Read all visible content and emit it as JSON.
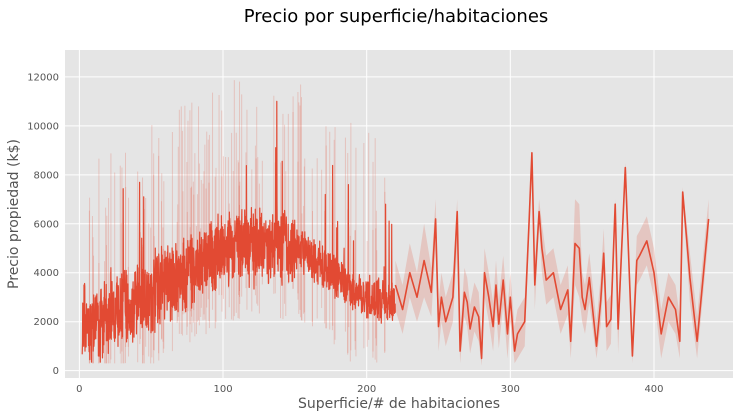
{
  "chart_data": {
    "type": "line",
    "title": "Precio por superficie/habitaciones",
    "xlabel": "Superficie/# de habitaciones",
    "ylabel": "Precio propiedad (k$)",
    "xlim": [
      -10,
      455
    ],
    "ylim": [
      -300,
      13100
    ],
    "x_ticks": [
      0,
      100,
      200,
      300,
      400
    ],
    "y_ticks": [
      0,
      2000,
      4000,
      6000,
      8000,
      10000,
      12000
    ],
    "grid": true,
    "legend": "none",
    "colors": {
      "line": "#E24A33",
      "band": "#E24A33",
      "plot_background": "#E5E5E5",
      "grid": "#FFFFFF"
    },
    "series": [
      {
        "x": [
          220,
          225,
          230,
          235,
          240,
          245,
          248,
          250,
          252,
          255,
          258,
          260,
          263,
          265,
          268,
          270,
          272,
          275,
          278,
          280,
          282,
          285,
          288,
          290,
          292,
          295,
          298,
          300,
          303,
          305,
          310,
          313,
          315,
          317,
          320,
          322,
          325,
          330,
          335,
          340,
          342,
          345,
          348,
          350,
          352,
          355,
          360,
          363,
          365,
          367,
          370,
          373,
          375,
          380,
          385,
          388,
          390,
          395,
          400,
          405,
          410,
          415,
          418,
          420,
          425,
          430,
          438
        ],
        "y": [
          3500,
          2500,
          4000,
          3000,
          4500,
          3200,
          6200,
          1800,
          3000,
          2000,
          2600,
          3000,
          6500,
          800,
          3200,
          2800,
          1700,
          2600,
          2200,
          500,
          4000,
          3000,
          1800,
          3500,
          1900,
          3700,
          1500,
          3000,
          800,
          1500,
          2000,
          6000,
          8900,
          3500,
          6500,
          5000,
          3700,
          4000,
          2500,
          3300,
          1200,
          5200,
          5000,
          3000,
          2500,
          3800,
          1000,
          2900,
          4800,
          1800,
          2100,
          6800,
          1700,
          8300,
          600,
          4500,
          4700,
          5300,
          4000,
          1500,
          3000,
          2500,
          1200,
          7300,
          3800,
          1200,
          6200
        ],
        "band_upper": [
          4500,
          3500,
          5200,
          4000,
          6000,
          4200,
          7000,
          2800,
          4000,
          3000,
          3600,
          4000,
          7000,
          1500,
          4200,
          3800,
          2700,
          3600,
          3200,
          1500,
          5000,
          4000,
          2800,
          4500,
          2900,
          4700,
          2500,
          4000,
          1800,
          2500,
          3000,
          6500,
          9000,
          4500,
          7000,
          6000,
          4700,
          5000,
          3500,
          4300,
          2200,
          7000,
          6800,
          4000,
          3500,
          4800,
          2000,
          3900,
          5800,
          2800,
          3100,
          7000,
          2700,
          8500,
          1600,
          5500,
          5700,
          6300,
          5000,
          2500,
          4000,
          3500,
          2200,
          7500,
          4800,
          2200,
          7000
        ],
        "band_lower": [
          2500,
          1500,
          3000,
          2000,
          3000,
          2200,
          5000,
          800,
          2000,
          1000,
          1600,
          2000,
          5000,
          300,
          2200,
          1800,
          700,
          1600,
          1200,
          200,
          3000,
          2000,
          800,
          2500,
          900,
          2700,
          500,
          2000,
          300,
          500,
          1000,
          5500,
          8500,
          2500,
          6000,
          4000,
          2700,
          3000,
          1500,
          2300,
          500,
          3500,
          3000,
          2000,
          1500,
          2800,
          500,
          1900,
          3800,
          800,
          1100,
          6500,
          700,
          8000,
          300,
          3500,
          3700,
          4300,
          3000,
          500,
          2000,
          1500,
          500,
          7000,
          2800,
          500,
          5500
        ]
      }
    ]
  }
}
